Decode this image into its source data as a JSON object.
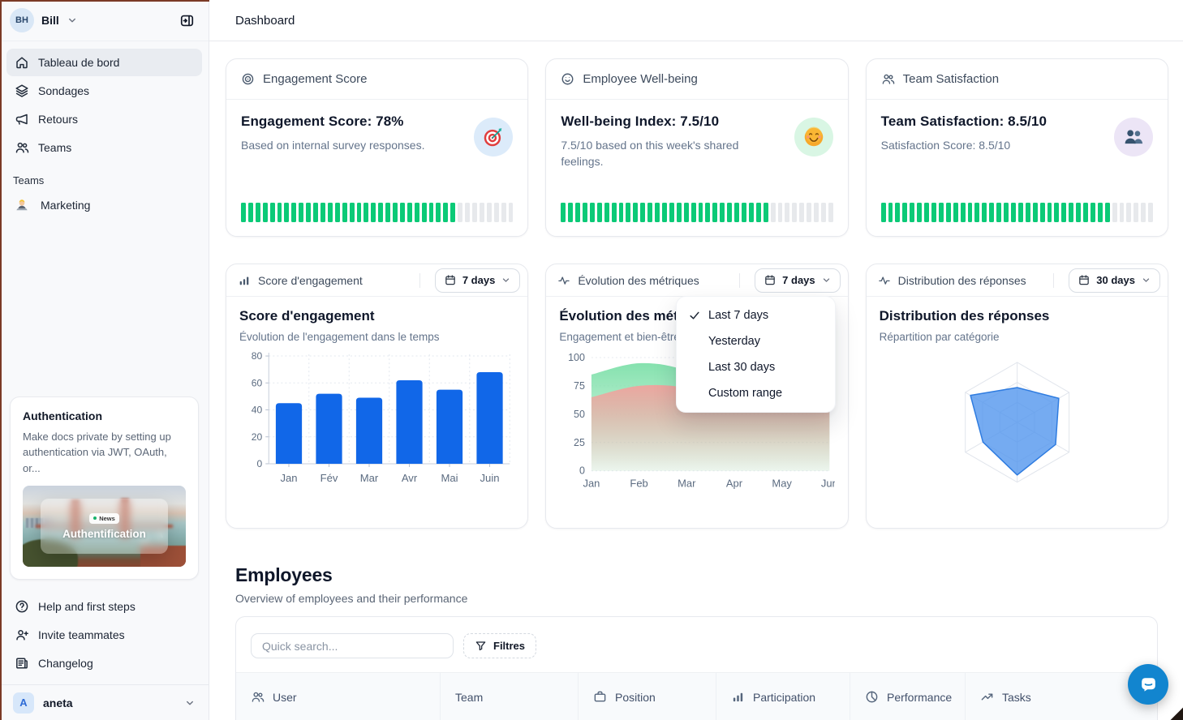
{
  "colors": {
    "accent_blue": "#1167e8",
    "tick_green": "#0bca77",
    "area_green": "#7fe0aa",
    "area_red": "#f0a39e",
    "radar_fill": "#5396ee",
    "radar_stroke": "#2f7ce0",
    "intercom_blue": "#1285cf"
  },
  "sidebar": {
    "user": {
      "initials": "BH",
      "name": "Bill"
    },
    "nav": [
      {
        "label": "Tableau de bord",
        "icon": "home-icon",
        "active": true
      },
      {
        "label": "Sondages",
        "icon": "layers-icon",
        "active": false
      },
      {
        "label": "Retours",
        "icon": "megaphone-icon",
        "active": false
      },
      {
        "label": "Teams",
        "icon": "users-icon",
        "active": false
      }
    ],
    "teams_section_label": "Teams",
    "team_items": [
      {
        "label": "Marketing",
        "icon": "technologist-emoji"
      }
    ],
    "promo": {
      "title": "Authentication",
      "description": "Make docs private by setting up authentication via JWT, OAuth, or...",
      "badge": "News",
      "image_caption": "Authentification"
    },
    "footer_nav": [
      {
        "label": "Help and first steps",
        "icon": "help-circle-icon"
      },
      {
        "label": "Invite teammates",
        "icon": "user-plus-icon"
      },
      {
        "label": "Changelog",
        "icon": "changelog-icon"
      }
    ],
    "workspace": {
      "initial": "A",
      "name": "aneta"
    }
  },
  "topbar": {
    "title": "Dashboard"
  },
  "stat_cards": [
    {
      "header_label": "Engagement Score",
      "header_icon": "target-icon",
      "title": "Engagement Score: 78%",
      "description": "Based on internal survey responses.",
      "progress_percent": 78,
      "emoji": "dart-emoji",
      "emoji_bg": "#dcebfa"
    },
    {
      "header_label": "Employee Well-being",
      "header_icon": "smile-icon",
      "title": "Well-being Index: 7.5/10",
      "description": "7.5/10 based on this week's shared feelings.",
      "progress_percent": 75,
      "emoji": "smiley-emoji",
      "emoji_bg": "#d9f6e4"
    },
    {
      "header_label": "Team Satisfaction",
      "header_icon": "users-icon",
      "title": "Team Satisfaction: 8.5/10",
      "description": "Satisfaction Score: 8.5/10",
      "progress_percent": 85,
      "emoji": "busts-emoji",
      "emoji_bg": "#ece5f6"
    }
  ],
  "chart_cards": [
    {
      "header_label": "Score d'engagement",
      "header_icon": "bar-chart-icon",
      "range_label": "7 days",
      "title": "Score d'engagement",
      "subtitle": "Évolution de l'engagement dans le temps"
    },
    {
      "header_label": "Évolution des métriques",
      "header_icon": "activity-icon",
      "range_label": "7 days",
      "title": "Évolution des métriques",
      "subtitle": "Engagement et bien-être"
    },
    {
      "header_label": "Distribution des réponses",
      "header_icon": "activity-icon",
      "range_label": "30 days",
      "title": "Distribution des réponses",
      "subtitle": "Répartition par catégorie"
    }
  ],
  "range_menu": {
    "items": [
      {
        "label": "Last 7 days",
        "checked": true
      },
      {
        "label": "Yesterday",
        "checked": false
      },
      {
        "label": "Last 30 days",
        "checked": false
      },
      {
        "label": "Custom range",
        "checked": false
      }
    ]
  },
  "employees": {
    "title": "Employees",
    "subtitle": "Overview of employees and their performance",
    "search_placeholder": "Quick search...",
    "filters_label": "Filtres",
    "columns": [
      {
        "label": "User",
        "icon": "users-icon"
      },
      {
        "label": "Team",
        "icon": null
      },
      {
        "label": "Position",
        "icon": "briefcase-icon"
      },
      {
        "label": "Participation",
        "icon": "bar-chart-icon"
      },
      {
        "label": "Performance",
        "icon": "pie-chart-icon"
      },
      {
        "label": "Tasks",
        "icon": "trending-up-icon"
      }
    ]
  },
  "chart_data": [
    {
      "type": "bar",
      "title": "Score d'engagement",
      "categories": [
        "Jan",
        "Fév",
        "Mar",
        "Avr",
        "Mai",
        "Juin"
      ],
      "values": [
        45,
        52,
        49,
        62,
        55,
        68
      ],
      "xlabel": "",
      "ylabel": "",
      "ylim": [
        0,
        80
      ],
      "yticks": [
        0,
        20,
        40,
        60,
        80
      ],
      "grid": true,
      "bar_color": "#1167e8"
    },
    {
      "type": "area",
      "title": "Évolution des métriques",
      "x": [
        "Jan",
        "Feb",
        "Mar",
        "Apr",
        "May",
        "Jun"
      ],
      "series": [
        {
          "name": "Engagement",
          "color": "#7fe0aa",
          "values": [
            85,
            95,
            88,
            62,
            66,
            70
          ]
        },
        {
          "name": "Bien-être",
          "color": "#f0a39e",
          "values": [
            65,
            75,
            73,
            58,
            63,
            66
          ]
        }
      ],
      "ylim": [
        0,
        100
      ],
      "yticks": [
        0,
        25,
        50,
        75,
        100
      ],
      "grid": true,
      "legend": "none"
    },
    {
      "type": "radar",
      "title": "Distribution des réponses",
      "axes_count": 6,
      "values": [
        0.58,
        0.8,
        0.74,
        0.88,
        0.66,
        0.9
      ],
      "max": 1,
      "rings": 3,
      "fill_color": "#5396ee",
      "stroke_color": "#2f7ce0"
    }
  ]
}
